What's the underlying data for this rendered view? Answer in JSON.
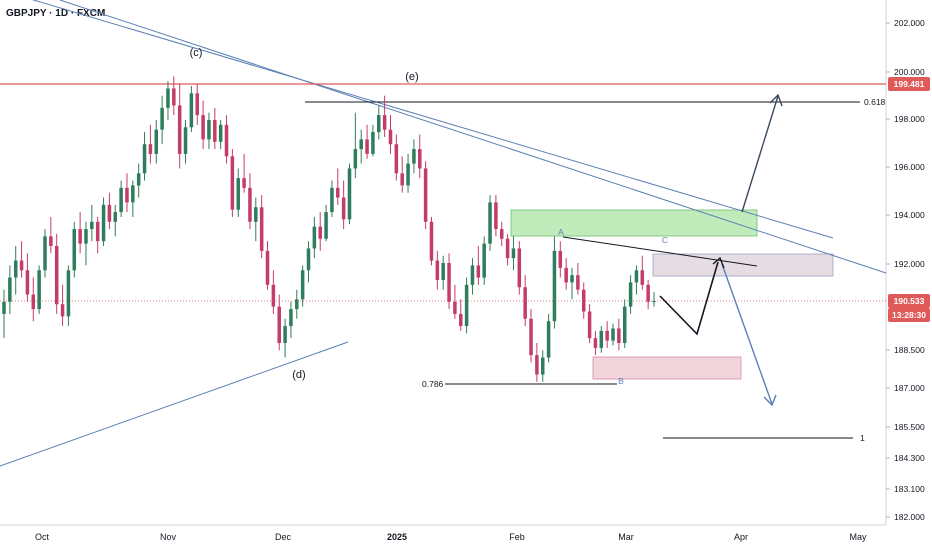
{
  "header": {
    "symbol_line": "GBPJPY · 1D · FXCM"
  },
  "chart_data": {
    "type": "candlestick",
    "symbol": "GBPJPY",
    "timeframe": "1D",
    "source": "FXCM",
    "x_tick_labels": [
      "Oct",
      "Nov",
      "Dec",
      "2025",
      "Feb",
      "Mar",
      "Apr",
      "May"
    ],
    "y_tick_labels": [
      "202.000",
      "200.000",
      "198.000",
      "196.000",
      "194.000",
      "192.000",
      "188.500",
      "187.000",
      "185.500",
      "184.300",
      "183.100",
      "182.000"
    ],
    "price_badges": [
      {
        "label": "199.481",
        "color": "#e05a5a"
      },
      {
        "label": "190.533",
        "color": "#e05a5a"
      },
      {
        "label": "13:28:30",
        "color": "#e05a5a"
      }
    ],
    "annotations": {
      "wave_labels": [
        "(c)",
        "(e)",
        "(d)"
      ],
      "fib_labels": [
        "0.618",
        "0.786",
        "1"
      ],
      "abc_labels": [
        "A",
        "B",
        "C"
      ]
    },
    "colors": {
      "bull": "#2e7d5b",
      "bear": "#c43c6a",
      "trendline": "#5b7fb5",
      "resistance": "#e05a5a",
      "green_zone": "#b7e8b0",
      "pink_zone": "#f2d4dc",
      "gray_zone": "#e6dde3",
      "arrow": "#3a4a5c"
    },
    "candles": [
      [
        190.0,
        191.0,
        189.0,
        190.5
      ],
      [
        190.5,
        192.0,
        190.0,
        191.5
      ],
      [
        191.5,
        192.8,
        190.8,
        192.2
      ],
      [
        192.2,
        193.0,
        191.5,
        191.8
      ],
      [
        191.8,
        192.5,
        190.5,
        190.8
      ],
      [
        190.8,
        191.5,
        189.7,
        190.2
      ],
      [
        190.2,
        192.0,
        190.0,
        191.8
      ],
      [
        191.8,
        193.5,
        191.5,
        193.2
      ],
      [
        193.2,
        194.0,
        192.5,
        192.8
      ],
      [
        192.8,
        193.3,
        190.0,
        190.4
      ],
      [
        190.4,
        191.2,
        189.5,
        189.9
      ],
      [
        189.9,
        192.0,
        189.5,
        191.8
      ],
      [
        191.8,
        193.8,
        191.5,
        193.5
      ],
      [
        193.5,
        194.2,
        192.5,
        192.9
      ],
      [
        192.9,
        193.8,
        192.0,
        193.5
      ],
      [
        193.5,
        194.5,
        193.0,
        193.8
      ],
      [
        193.8,
        194.0,
        192.5,
        193.0
      ],
      [
        193.0,
        194.8,
        192.8,
        194.5
      ],
      [
        194.5,
        195.0,
        193.5,
        193.8
      ],
      [
        193.8,
        194.5,
        193.2,
        194.2
      ],
      [
        194.2,
        195.5,
        194.0,
        195.2
      ],
      [
        195.2,
        195.8,
        194.2,
        194.6
      ],
      [
        194.6,
        195.5,
        194.0,
        195.3
      ],
      [
        195.3,
        196.2,
        194.8,
        195.8
      ],
      [
        195.8,
        197.5,
        195.5,
        197.0
      ],
      [
        197.0,
        197.8,
        196.2,
        196.6
      ],
      [
        196.6,
        198.0,
        196.2,
        197.6
      ],
      [
        197.6,
        199.0,
        197.0,
        198.5
      ],
      [
        198.5,
        199.6,
        198.0,
        199.3
      ],
      [
        199.3,
        199.8,
        198.2,
        198.6
      ],
      [
        198.6,
        199.5,
        196.0,
        196.6
      ],
      [
        196.6,
        198.0,
        196.2,
        197.7
      ],
      [
        197.7,
        199.4,
        197.5,
        199.1
      ],
      [
        199.1,
        199.5,
        197.8,
        198.2
      ],
      [
        198.2,
        198.8,
        196.8,
        197.2
      ],
      [
        197.2,
        198.3,
        196.8,
        198.0
      ],
      [
        198.0,
        198.5,
        196.8,
        197.1
      ],
      [
        197.1,
        198.0,
        196.8,
        197.8
      ],
      [
        197.8,
        198.2,
        196.2,
        196.5
      ],
      [
        196.5,
        196.8,
        194.0,
        194.3
      ],
      [
        194.3,
        196.0,
        194.0,
        195.6
      ],
      [
        195.6,
        196.6,
        195.0,
        195.2
      ],
      [
        195.2,
        195.8,
        193.5,
        193.8
      ],
      [
        193.8,
        194.8,
        193.0,
        194.4
      ],
      [
        194.4,
        194.9,
        192.3,
        192.6
      ],
      [
        192.6,
        193.0,
        191.0,
        191.2
      ],
      [
        191.2,
        191.8,
        190.0,
        190.3
      ],
      [
        190.3,
        190.8,
        188.5,
        188.8
      ],
      [
        188.8,
        189.8,
        188.2,
        189.5
      ],
      [
        189.5,
        190.5,
        189.0,
        190.2
      ],
      [
        190.2,
        191.0,
        189.8,
        190.6
      ],
      [
        190.6,
        192.0,
        190.3,
        191.8
      ],
      [
        191.8,
        193.0,
        191.3,
        192.7
      ],
      [
        192.7,
        194.0,
        192.3,
        193.6
      ],
      [
        193.6,
        194.2,
        192.6,
        193.1
      ],
      [
        193.1,
        194.5,
        193.0,
        194.2
      ],
      [
        194.2,
        195.5,
        194.0,
        195.2
      ],
      [
        195.2,
        196.0,
        194.5,
        194.8
      ],
      [
        194.8,
        195.5,
        193.5,
        193.9
      ],
      [
        193.9,
        196.2,
        193.7,
        196.0
      ],
      [
        196.0,
        198.3,
        195.6,
        196.8
      ],
      [
        196.8,
        197.6,
        196.2,
        197.2
      ],
      [
        197.2,
        197.8,
        196.4,
        196.6
      ],
      [
        196.6,
        197.8,
        196.5,
        197.5
      ],
      [
        197.5,
        198.6,
        197.2,
        198.2
      ],
      [
        198.2,
        199.0,
        197.3,
        197.6
      ],
      [
        197.6,
        198.2,
        196.6,
        197.0
      ],
      [
        197.0,
        197.4,
        195.5,
        195.8
      ],
      [
        195.8,
        196.5,
        195.0,
        195.3
      ],
      [
        195.3,
        196.6,
        195.0,
        196.2
      ],
      [
        196.2,
        197.2,
        195.8,
        196.8
      ],
      [
        196.8,
        197.4,
        195.6,
        196.0
      ],
      [
        196.0,
        196.3,
        193.5,
        193.8
      ],
      [
        193.8,
        194.0,
        192.0,
        192.2
      ],
      [
        192.2,
        192.6,
        191.0,
        191.4
      ],
      [
        191.4,
        192.4,
        191.0,
        192.1
      ],
      [
        192.1,
        192.5,
        190.2,
        190.5
      ],
      [
        190.5,
        191.2,
        189.8,
        190.0
      ],
      [
        190.0,
        190.6,
        189.3,
        189.5
      ],
      [
        189.5,
        191.5,
        189.2,
        191.2
      ],
      [
        191.2,
        192.3,
        190.8,
        192.0
      ],
      [
        192.0,
        192.8,
        191.2,
        191.5
      ],
      [
        191.5,
        193.2,
        191.2,
        192.9
      ],
      [
        192.9,
        194.9,
        192.6,
        194.6
      ],
      [
        194.6,
        194.9,
        193.2,
        193.5
      ],
      [
        193.5,
        193.8,
        192.8,
        193.1
      ],
      [
        193.1,
        193.3,
        192.0,
        192.3
      ],
      [
        192.3,
        193.2,
        191.8,
        192.7
      ],
      [
        192.7,
        193.0,
        190.8,
        191.1
      ],
      [
        191.1,
        191.6,
        189.5,
        189.8
      ],
      [
        189.8,
        190.2,
        188.0,
        188.3
      ],
      [
        188.3,
        188.8,
        187.2,
        187.5
      ],
      [
        187.5,
        188.5,
        187.2,
        188.2
      ],
      [
        188.2,
        190.0,
        188.0,
        189.7
      ],
      [
        189.7,
        193.2,
        189.4,
        192.6
      ],
      [
        192.6,
        193.0,
        191.5,
        191.9
      ],
      [
        191.9,
        192.3,
        191.0,
        191.3
      ],
      [
        191.3,
        191.9,
        190.6,
        191.6
      ],
      [
        191.6,
        192.1,
        190.8,
        191.0
      ],
      [
        191.0,
        191.3,
        189.8,
        190.1
      ],
      [
        190.1,
        190.4,
        188.8,
        189.0
      ],
      [
        189.0,
        189.3,
        188.3,
        188.6
      ],
      [
        188.6,
        189.5,
        188.4,
        189.3
      ],
      [
        189.3,
        189.7,
        188.6,
        188.9
      ],
      [
        188.9,
        189.6,
        188.7,
        189.4
      ],
      [
        189.4,
        189.8,
        188.5,
        188.8
      ],
      [
        188.8,
        190.6,
        188.6,
        190.3
      ],
      [
        190.3,
        191.6,
        190.0,
        191.3
      ],
      [
        191.3,
        192.0,
        190.8,
        191.8
      ],
      [
        191.8,
        192.4,
        191.0,
        191.2
      ],
      [
        191.2,
        191.4,
        190.2,
        190.5
      ],
      [
        190.5,
        190.9,
        190.3,
        190.53
      ]
    ]
  }
}
